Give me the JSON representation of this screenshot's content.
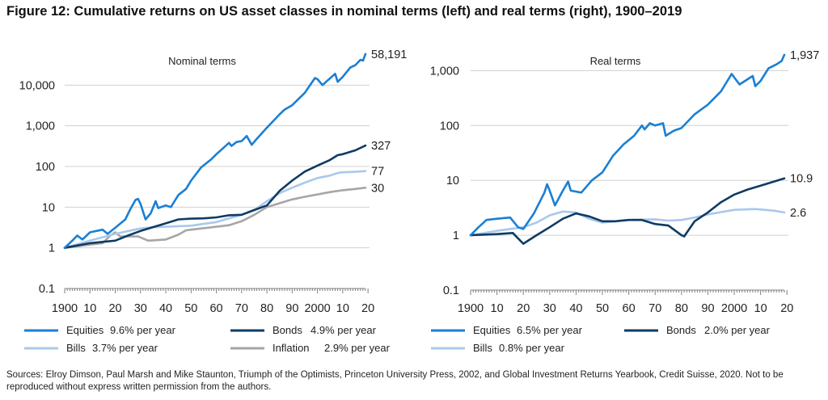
{
  "figure_title": "Figure 12: Cumulative returns on US asset classes in nominal terms (left) and real terms (right), 1900–2019",
  "source_note": "Sources: Elroy Dimson, Paul Marsh and Mike Staunton, Triumph of the Optimists, Princeton University Press, 2002, and Global Investment Returns Yearbook, Credit Suisse, 2020. Not to be reproduced without express written permission from the authors.",
  "colors": {
    "equities": "#1a7fd4",
    "bonds": "#0f3b63",
    "bills": "#a9c8ec",
    "inflation": "#a6a6a6",
    "grid": "#d0d0d0",
    "axis": "#7f7f7f"
  },
  "chart_data": [
    {
      "type": "line",
      "title": "Nominal terms",
      "y_scale": "log",
      "ylim": [
        0.1,
        100000
      ],
      "yticks": [
        0.1,
        1,
        10,
        100,
        1000,
        10000
      ],
      "ytick_labels": [
        "0.1",
        "1",
        "10",
        "100",
        "1,000",
        "10,000"
      ],
      "xlim": [
        1900,
        2019
      ],
      "xtick_labels": [
        "1900",
        "10",
        "20",
        "30",
        "40",
        "50",
        "60",
        "70",
        "80",
        "90",
        "2000",
        "10",
        "20"
      ],
      "grid": true,
      "legend_position": "bottom",
      "series": [
        {
          "name": "Equities",
          "legend": "9.6% per year",
          "color_key": "equities",
          "end_label": "58,191",
          "points": [
            [
              1900,
              1.0
            ],
            [
              1903,
              1.5
            ],
            [
              1905,
              2.0
            ],
            [
              1907,
              1.6
            ],
            [
              1910,
              2.4
            ],
            [
              1915,
              2.8
            ],
            [
              1917,
              2.2
            ],
            [
              1920,
              3.1
            ],
            [
              1924,
              5.0
            ],
            [
              1926,
              9.0
            ],
            [
              1928,
              15
            ],
            [
              1929,
              16
            ],
            [
              1930,
              12
            ],
            [
              1932,
              5.0
            ],
            [
              1934,
              7.0
            ],
            [
              1936,
              14
            ],
            [
              1937,
              9.5
            ],
            [
              1940,
              11
            ],
            [
              1942,
              10
            ],
            [
              1945,
              20
            ],
            [
              1948,
              28
            ],
            [
              1950,
              45
            ],
            [
              1954,
              95
            ],
            [
              1958,
              150
            ],
            [
              1960,
              200
            ],
            [
              1965,
              380
            ],
            [
              1966,
              320
            ],
            [
              1968,
              400
            ],
            [
              1970,
              420
            ],
            [
              1972,
              560
            ],
            [
              1974,
              340
            ],
            [
              1976,
              480
            ],
            [
              1980,
              900
            ],
            [
              1985,
              1900
            ],
            [
              1987,
              2500
            ],
            [
              1990,
              3200
            ],
            [
              1995,
              6500
            ],
            [
              1999,
              15000
            ],
            [
              2000,
              14000
            ],
            [
              2002,
              10000
            ],
            [
              2004,
              13000
            ],
            [
              2007,
              19000
            ],
            [
              2008,
              12000
            ],
            [
              2010,
              16000
            ],
            [
              2013,
              27000
            ],
            [
              2015,
              31000
            ],
            [
              2017,
              42000
            ],
            [
              2018,
              40000
            ],
            [
              2019,
              58191
            ]
          ]
        },
        {
          "name": "Bonds",
          "legend": "4.9% per year",
          "color_key": "bonds",
          "end_label": "327",
          "points": [
            [
              1900,
              1.0
            ],
            [
              1910,
              1.3
            ],
            [
              1920,
              1.5
            ],
            [
              1925,
              2.0
            ],
            [
              1930,
              2.6
            ],
            [
              1940,
              4.0
            ],
            [
              1945,
              5.0
            ],
            [
              1950,
              5.2
            ],
            [
              1955,
              5.3
            ],
            [
              1960,
              5.6
            ],
            [
              1965,
              6.3
            ],
            [
              1970,
              6.5
            ],
            [
              1975,
              8.5
            ],
            [
              1980,
              11
            ],
            [
              1985,
              25
            ],
            [
              1990,
              45
            ],
            [
              1995,
              75
            ],
            [
              2000,
              105
            ],
            [
              2005,
              145
            ],
            [
              2008,
              190
            ],
            [
              2010,
              200
            ],
            [
              2015,
              250
            ],
            [
              2019,
              327
            ]
          ]
        },
        {
          "name": "Bills",
          "legend": "3.7% per year",
          "color_key": "bills",
          "end_label": "77",
          "points": [
            [
              1900,
              1.0
            ],
            [
              1910,
              1.5
            ],
            [
              1920,
              2.2
            ],
            [
              1930,
              3.0
            ],
            [
              1935,
              3.2
            ],
            [
              1940,
              3.3
            ],
            [
              1950,
              3.5
            ],
            [
              1960,
              4.3
            ],
            [
              1970,
              6.5
            ],
            [
              1975,
              8.5
            ],
            [
              1980,
              14
            ],
            [
              1985,
              22
            ],
            [
              1990,
              30
            ],
            [
              1995,
              40
            ],
            [
              2000,
              52
            ],
            [
              2005,
              60
            ],
            [
              2008,
              69
            ],
            [
              2010,
              72
            ],
            [
              2015,
              74
            ],
            [
              2019,
              77
            ]
          ]
        },
        {
          "name": "Inflation",
          "legend": "2.9% per year",
          "color_key": "inflation",
          "end_label": "30",
          "points": [
            [
              1900,
              1.0
            ],
            [
              1910,
              1.2
            ],
            [
              1915,
              1.3
            ],
            [
              1918,
              2.0
            ],
            [
              1920,
              2.4
            ],
            [
              1922,
              1.9
            ],
            [
              1929,
              1.9
            ],
            [
              1933,
              1.5
            ],
            [
              1940,
              1.6
            ],
            [
              1945,
              2.1
            ],
            [
              1948,
              2.7
            ],
            [
              1950,
              2.8
            ],
            [
              1960,
              3.3
            ],
            [
              1965,
              3.6
            ],
            [
              1970,
              4.5
            ],
            [
              1975,
              6.5
            ],
            [
              1980,
              10
            ],
            [
              1985,
              12.5
            ],
            [
              1990,
              15.5
            ],
            [
              1995,
              18
            ],
            [
              2000,
              20.5
            ],
            [
              2005,
              23.5
            ],
            [
              2010,
              26
            ],
            [
              2015,
              28
            ],
            [
              2019,
              30
            ]
          ]
        }
      ]
    },
    {
      "type": "line",
      "title": "Real terms",
      "y_scale": "log",
      "ylim": [
        0.1,
        3000
      ],
      "yticks": [
        0.1,
        1,
        10,
        100,
        1000
      ],
      "ytick_labels": [
        "0.1",
        "1",
        "10",
        "100",
        "1,000"
      ],
      "xlim": [
        1900,
        2019
      ],
      "xtick_labels": [
        "1900",
        "10",
        "20",
        "30",
        "40",
        "50",
        "60",
        "70",
        "80",
        "90",
        "2000",
        "10",
        "20"
      ],
      "grid": true,
      "legend_position": "bottom",
      "series": [
        {
          "name": "Equities",
          "legend": "6.5% per year",
          "color_key": "equities",
          "end_label": "1,937",
          "points": [
            [
              1900,
              1.0
            ],
            [
              1903,
              1.4
            ],
            [
              1906,
              1.9
            ],
            [
              1910,
              2.0
            ],
            [
              1915,
              2.1
            ],
            [
              1918,
              1.4
            ],
            [
              1920,
              1.3
            ],
            [
              1924,
              2.5
            ],
            [
              1928,
              6.0
            ],
            [
              1929,
              8.5
            ],
            [
              1930,
              6.5
            ],
            [
              1932,
              3.5
            ],
            [
              1935,
              6.5
            ],
            [
              1937,
              9.5
            ],
            [
              1938,
              6.5
            ],
            [
              1942,
              6.0
            ],
            [
              1946,
              10
            ],
            [
              1950,
              14
            ],
            [
              1954,
              28
            ],
            [
              1958,
              45
            ],
            [
              1962,
              65
            ],
            [
              1965,
              100
            ],
            [
              1966,
              85
            ],
            [
              1968,
              110
            ],
            [
              1970,
              100
            ],
            [
              1973,
              110
            ],
            [
              1974,
              65
            ],
            [
              1977,
              80
            ],
            [
              1980,
              90
            ],
            [
              1985,
              160
            ],
            [
              1990,
              240
            ],
            [
              1995,
              420
            ],
            [
              1999,
              870
            ],
            [
              2002,
              560
            ],
            [
              2007,
              800
            ],
            [
              2008,
              520
            ],
            [
              2010,
              650
            ],
            [
              2013,
              1100
            ],
            [
              2016,
              1300
            ],
            [
              2018,
              1500
            ],
            [
              2019,
              1937
            ]
          ]
        },
        {
          "name": "Bonds",
          "legend": "2.0% per year",
          "color_key": "bonds",
          "end_label": "10.9",
          "points": [
            [
              1900,
              1.0
            ],
            [
              1910,
              1.05
            ],
            [
              1916,
              1.1
            ],
            [
              1920,
              0.7
            ],
            [
              1925,
              1.0
            ],
            [
              1930,
              1.4
            ],
            [
              1935,
              2.0
            ],
            [
              1940,
              2.5
            ],
            [
              1945,
              2.2
            ],
            [
              1950,
              1.8
            ],
            [
              1955,
              1.8
            ],
            [
              1960,
              1.9
            ],
            [
              1965,
              1.9
            ],
            [
              1970,
              1.6
            ],
            [
              1975,
              1.5
            ],
            [
              1980,
              1.0
            ],
            [
              1981,
              0.95
            ],
            [
              1985,
              1.8
            ],
            [
              1990,
              2.6
            ],
            [
              1995,
              4.0
            ],
            [
              2000,
              5.5
            ],
            [
              2005,
              6.8
            ],
            [
              2010,
              8.0
            ],
            [
              2015,
              9.5
            ],
            [
              2019,
              10.9
            ]
          ]
        },
        {
          "name": "Bills",
          "legend": "0.8% per year",
          "color_key": "bills",
          "end_label": "2.6",
          "points": [
            [
              1900,
              1.0
            ],
            [
              1910,
              1.2
            ],
            [
              1920,
              1.4
            ],
            [
              1925,
              1.7
            ],
            [
              1930,
              2.3
            ],
            [
              1935,
              2.7
            ],
            [
              1940,
              2.6
            ],
            [
              1945,
              2.0
            ],
            [
              1950,
              1.7
            ],
            [
              1955,
              1.8
            ],
            [
              1960,
              1.9
            ],
            [
              1970,
              1.95
            ],
            [
              1975,
              1.85
            ],
            [
              1980,
              1.9
            ],
            [
              1985,
              2.1
            ],
            [
              1990,
              2.4
            ],
            [
              2000,
              2.9
            ],
            [
              2008,
              3.0
            ],
            [
              2015,
              2.8
            ],
            [
              2019,
              2.6
            ]
          ]
        }
      ]
    }
  ]
}
